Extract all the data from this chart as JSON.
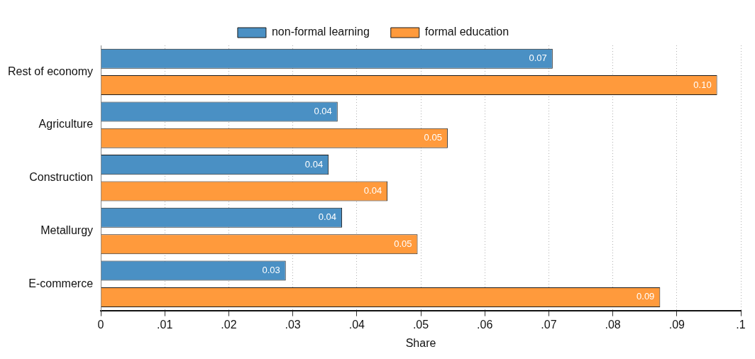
{
  "chart_data": {
    "type": "bar",
    "orientation": "horizontal",
    "xlabel": "Share",
    "categories": [
      "Rest of economy",
      "Agriculture",
      "Construction",
      "Metallurgy",
      "E-commerce"
    ],
    "series": [
      {
        "name": "non-formal learning",
        "color": "#4a90c4",
        "values": [
          0.0706,
          0.037,
          0.0356,
          0.0377,
          0.0289
        ],
        "value_labels": [
          "0.07",
          "0.04",
          "0.04",
          "0.04",
          "0.03"
        ]
      },
      {
        "name": "formal education",
        "color": "#ff9a3c",
        "values": [
          0.0963,
          0.0542,
          0.0448,
          0.0495,
          0.0874
        ],
        "value_labels": [
          "0.10",
          "0.05",
          "0.04",
          "0.05",
          "0.09"
        ]
      }
    ],
    "xlim": [
      0,
      0.1
    ],
    "xticks": [
      0,
      {
        "value": 0.01,
        "label": ".01"
      },
      {
        "value": 0.02,
        "label": ".02"
      },
      {
        "value": 0.03,
        "label": ".03"
      },
      {
        "value": 0.04,
        "label": ".04"
      },
      {
        "value": 0.05,
        "label": ".05"
      },
      {
        "value": 0.06,
        "label": ".06"
      },
      {
        "value": 0.07,
        "label": ".07"
      },
      {
        "value": 0.08,
        "label": ".08"
      },
      {
        "value": 0.09,
        "label": ".09"
      },
      {
        "value": 0.1,
        "label": ".1"
      }
    ],
    "grid": "x",
    "legend": "top"
  }
}
